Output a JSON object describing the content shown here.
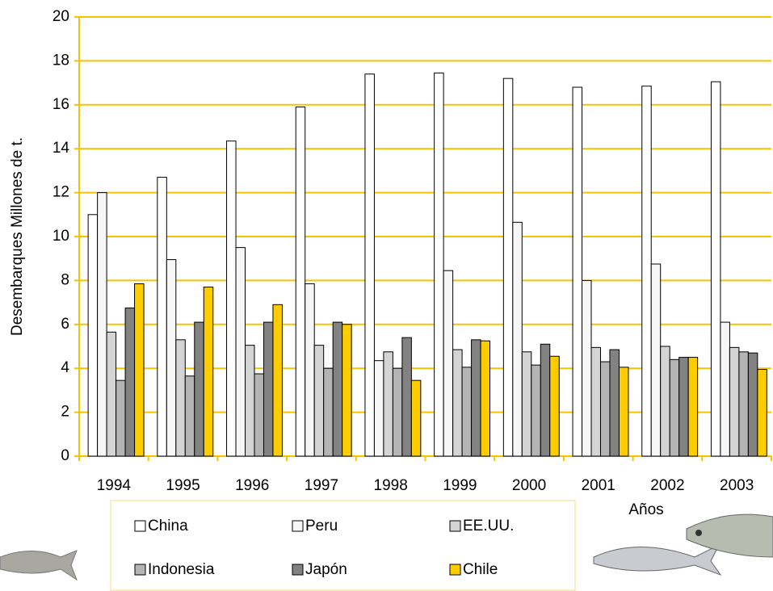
{
  "chart_data": {
    "type": "bar",
    "x_label": "Años",
    "y_label": "Desembarques Millones de t.",
    "categories": [
      "1994",
      "1995",
      "1996",
      "1997",
      "1998",
      "1999",
      "2000",
      "2001",
      "2002",
      "2003"
    ],
    "series": [
      {
        "name": "China",
        "color": "#ffffff",
        "values": [
          11.0,
          12.7,
          14.35,
          15.9,
          17.4,
          17.45,
          17.2,
          16.8,
          16.85,
          17.05
        ]
      },
      {
        "name": "Peru",
        "color": "#f6f6f6",
        "values": [
          12.0,
          8.95,
          9.5,
          7.85,
          4.35,
          8.45,
          10.65,
          8.0,
          8.75,
          6.1
        ]
      },
      {
        "name": "EE.UU.",
        "color": "#d4d4d4",
        "values": [
          5.65,
          5.3,
          5.05,
          5.05,
          4.75,
          4.85,
          4.75,
          4.95,
          5.0,
          4.95
        ]
      },
      {
        "name": "Indonesia",
        "color": "#b4b4b4",
        "values": [
          3.45,
          3.65,
          3.75,
          4.0,
          4.0,
          4.05,
          4.15,
          4.3,
          4.4,
          4.75
        ]
      },
      {
        "name": "Japón",
        "color": "#828282",
        "values": [
          6.75,
          6.1,
          6.1,
          6.1,
          5.4,
          5.3,
          5.1,
          4.85,
          4.5,
          4.7
        ]
      },
      {
        "name": "Chile",
        "color": "#ffcc00",
        "values": [
          7.85,
          7.7,
          6.9,
          6.0,
          3.45,
          5.25,
          4.55,
          4.05,
          4.5,
          3.95
        ]
      }
    ],
    "ylim": [
      0,
      20
    ],
    "yticks": [
      0,
      2,
      4,
      6,
      8,
      10,
      12,
      14,
      16,
      18,
      20
    ],
    "grid": true,
    "grid_color": "#f5c400",
    "legend": "bottom"
  }
}
